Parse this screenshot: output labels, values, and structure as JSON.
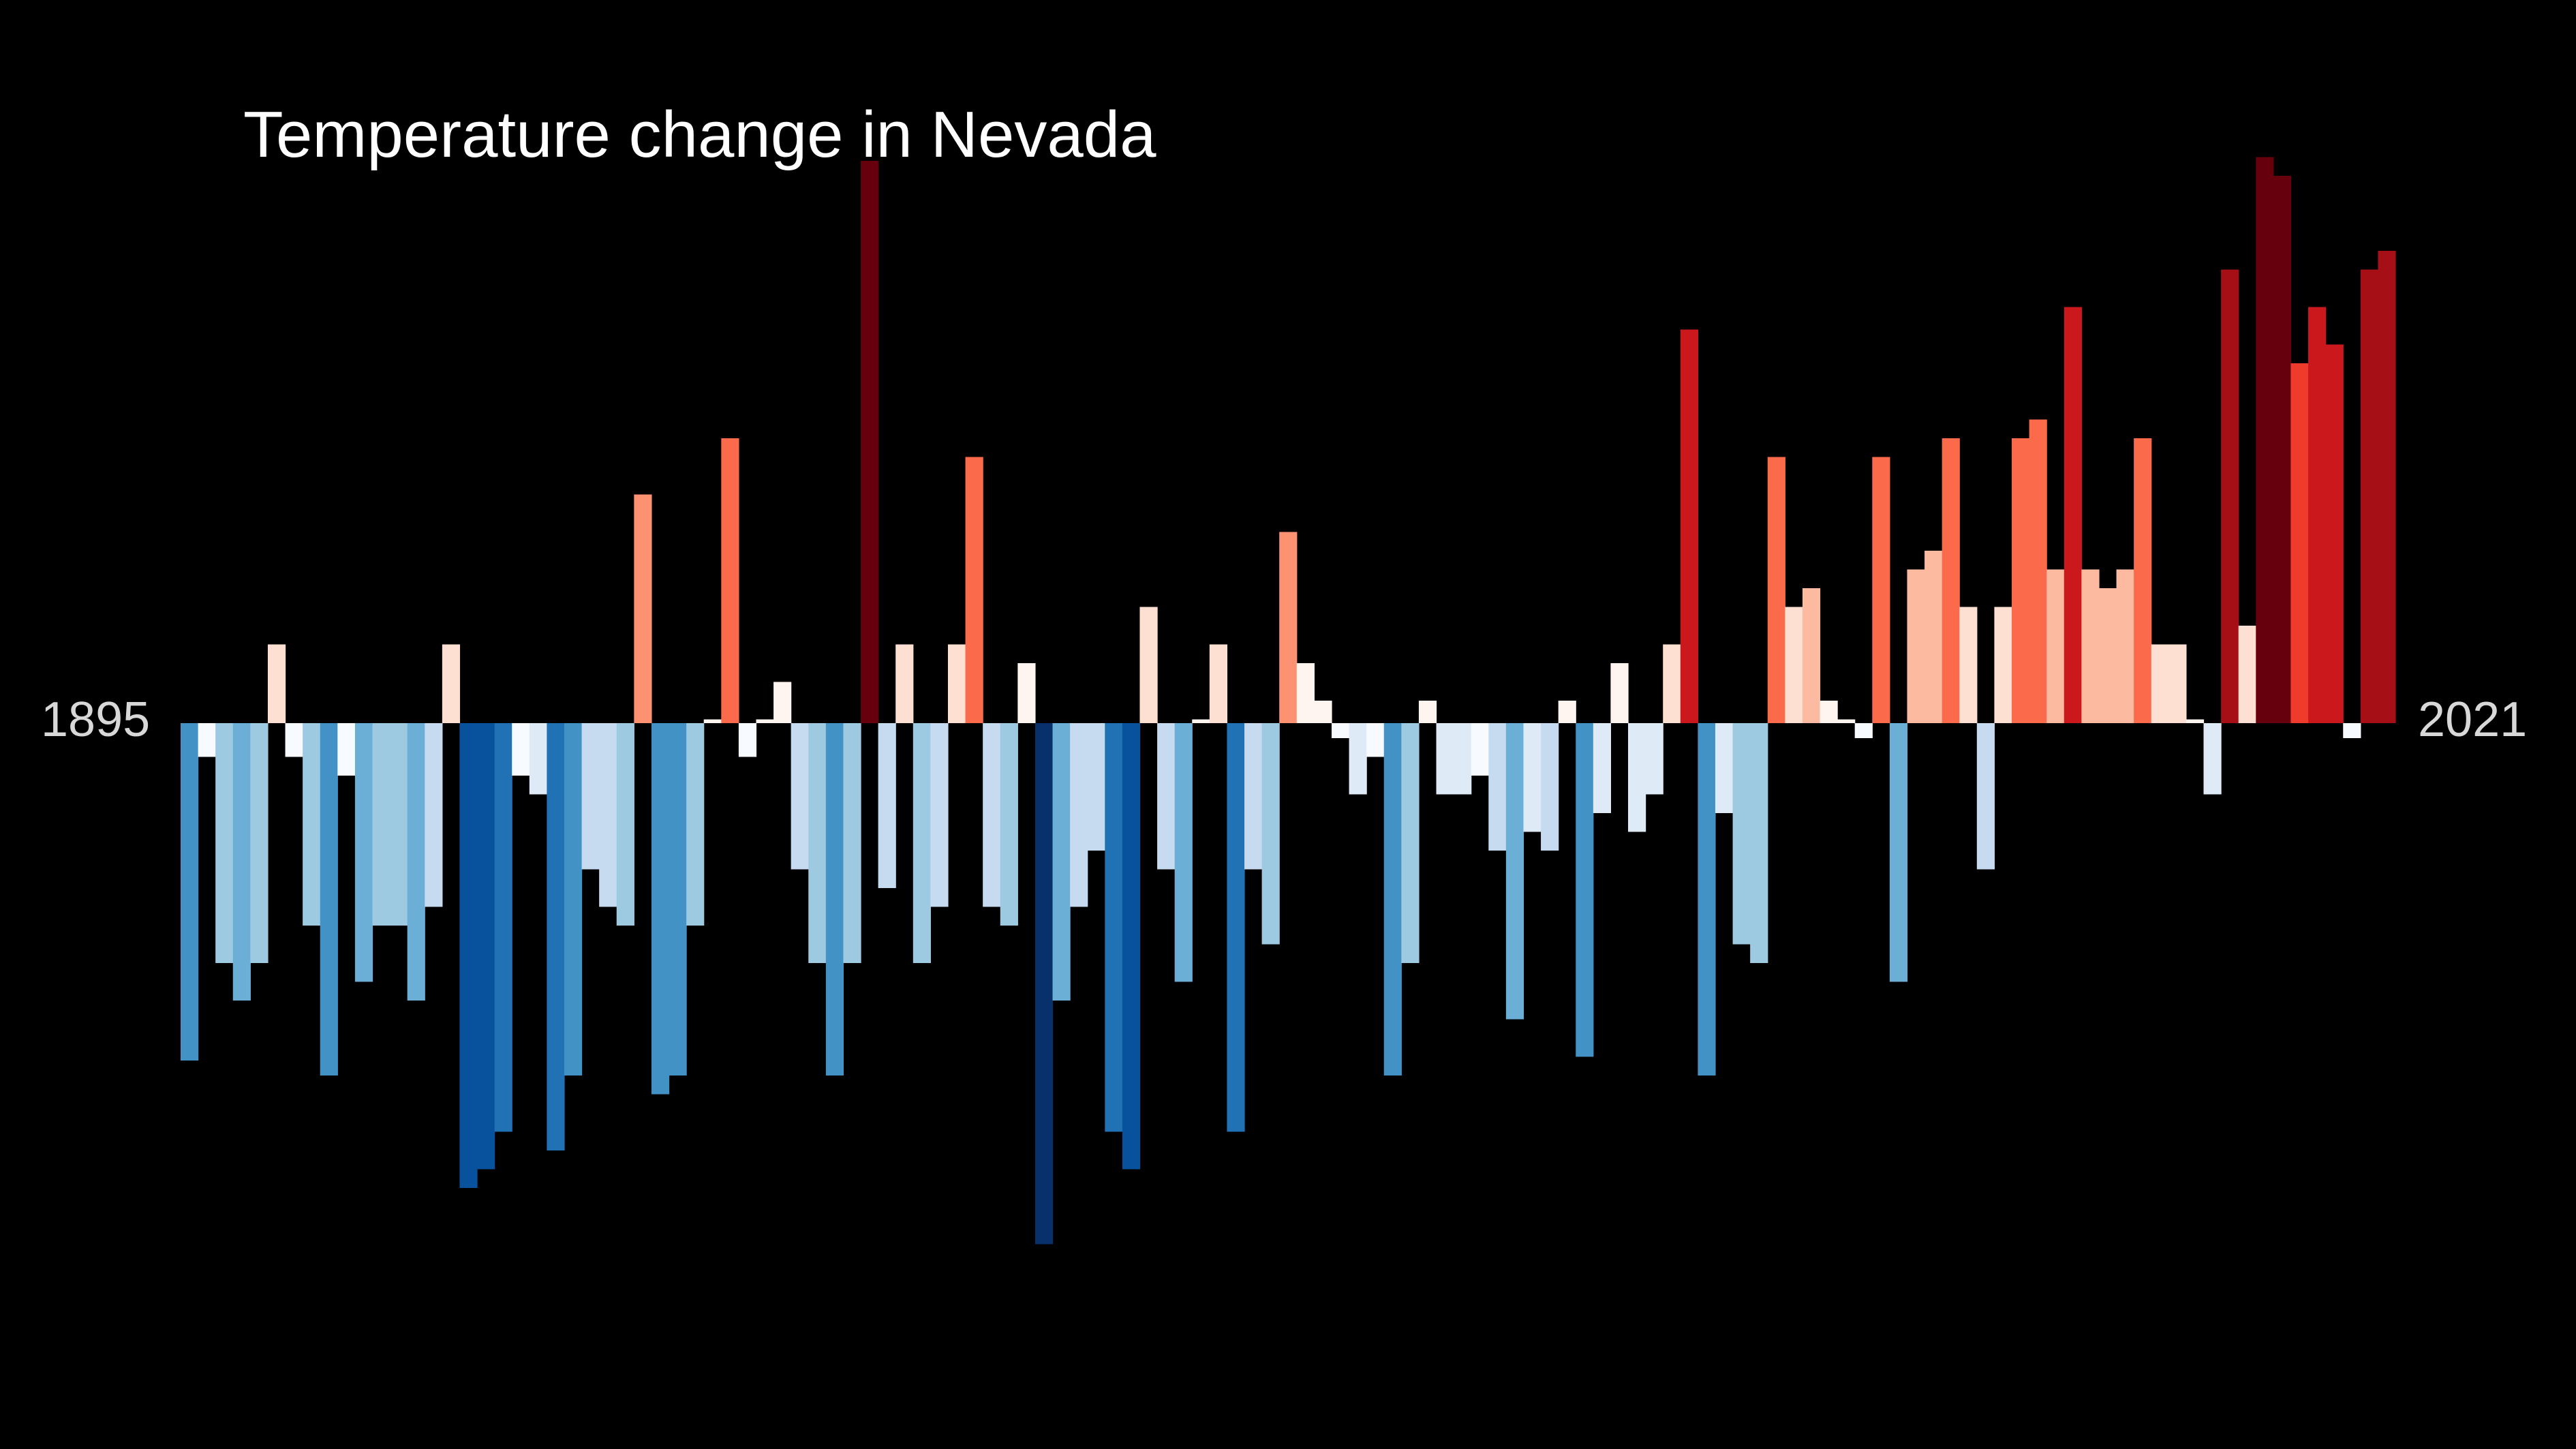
{
  "chart_data": {
    "type": "bar",
    "title": "Temperature change in Nevada",
    "start_year": "1895",
    "end_year": "2021",
    "xlabel": "",
    "ylabel": "",
    "grid": false,
    "legend": "none",
    "background": "#000000",
    "ylim": [
      -2.8,
      3.0
    ],
    "categories": [
      1895,
      1896,
      1897,
      1898,
      1899,
      1900,
      1901,
      1902,
      1903,
      1904,
      1905,
      1906,
      1907,
      1908,
      1909,
      1910,
      1911,
      1912,
      1913,
      1914,
      1915,
      1916,
      1917,
      1918,
      1919,
      1920,
      1921,
      1922,
      1923,
      1924,
      1925,
      1926,
      1927,
      1928,
      1929,
      1930,
      1931,
      1932,
      1933,
      1934,
      1935,
      1936,
      1937,
      1938,
      1939,
      1940,
      1941,
      1942,
      1943,
      1944,
      1945,
      1946,
      1947,
      1948,
      1949,
      1950,
      1951,
      1952,
      1953,
      1954,
      1955,
      1956,
      1957,
      1958,
      1959,
      1960,
      1961,
      1962,
      1963,
      1964,
      1965,
      1966,
      1967,
      1968,
      1969,
      1970,
      1971,
      1972,
      1973,
      1974,
      1975,
      1976,
      1977,
      1978,
      1979,
      1980,
      1981,
      1982,
      1983,
      1984,
      1985,
      1986,
      1987,
      1988,
      1989,
      1990,
      1991,
      1992,
      1993,
      1994,
      1995,
      1996,
      1997,
      1998,
      1999,
      2000,
      2001,
      2002,
      2003,
      2004,
      2005,
      2006,
      2007,
      2008,
      2009,
      2010,
      2011,
      2012,
      2013,
      2014,
      2015,
      2016,
      2017,
      2018,
      2019,
      2020,
      2021
    ],
    "values": [
      -1.8,
      -0.18,
      -1.28,
      -1.48,
      -1.28,
      0.42,
      -0.18,
      -1.08,
      -1.88,
      -0.28,
      -1.38,
      -1.08,
      -1.08,
      -1.48,
      -0.98,
      0.42,
      -2.48,
      -2.38,
      -2.18,
      -0.28,
      -0.38,
      -2.28,
      -1.88,
      -0.78,
      -0.98,
      -1.08,
      1.22,
      -1.98,
      -1.88,
      -1.08,
      0.02,
      1.52,
      -0.18,
      0.02,
      0.22,
      -0.78,
      -1.28,
      -1.88,
      -1.28,
      3.0,
      -0.88,
      0.42,
      -1.28,
      -0.98,
      0.42,
      1.42,
      -0.98,
      -1.08,
      0.32,
      -2.78,
      -1.48,
      -0.98,
      -0.68,
      -2.18,
      -2.38,
      0.62,
      -0.78,
      -1.38,
      0.02,
      0.42,
      -2.18,
      -0.78,
      -1.18,
      1.02,
      0.32,
      0.12,
      -0.08,
      -0.38,
      -0.18,
      -1.88,
      -1.28,
      0.12,
      -0.38,
      -0.38,
      -0.28,
      -0.68,
      -1.58,
      -0.58,
      -0.68,
      0.12,
      -1.78,
      -0.48,
      0.32,
      -0.58,
      -0.38,
      0.42,
      2.1,
      -1.88,
      -0.48,
      -1.18,
      -1.28,
      1.42,
      0.62,
      0.72,
      0.12,
      0.02,
      -0.08,
      1.42,
      -1.38,
      0.82,
      0.92,
      1.52,
      0.62,
      -0.78,
      0.62,
      1.52,
      1.62,
      0.82,
      2.22,
      0.82,
      0.72,
      0.82,
      1.52,
      0.42,
      0.42,
      0.02,
      -0.38,
      2.42,
      0.52,
      3.02,
      2.92,
      1.92,
      2.22,
      2.02,
      -0.08,
      2.42,
      2.52
    ],
    "colors": {
      "title": "#ffffff",
      "year_labels": "#d8d8d8",
      "warm_scale": [
        "#fff5f0",
        "#fee0d2",
        "#fcbba1",
        "#fc9272",
        "#fb6a4a",
        "#ef3b2c",
        "#cb181d",
        "#a50f15",
        "#67000d"
      ],
      "cool_scale": [
        "#f7fbff",
        "#deebf7",
        "#c6dbef",
        "#9ecae1",
        "#6baed6",
        "#4292c6",
        "#2171b5",
        "#08519c",
        "#08306b"
      ]
    }
  }
}
